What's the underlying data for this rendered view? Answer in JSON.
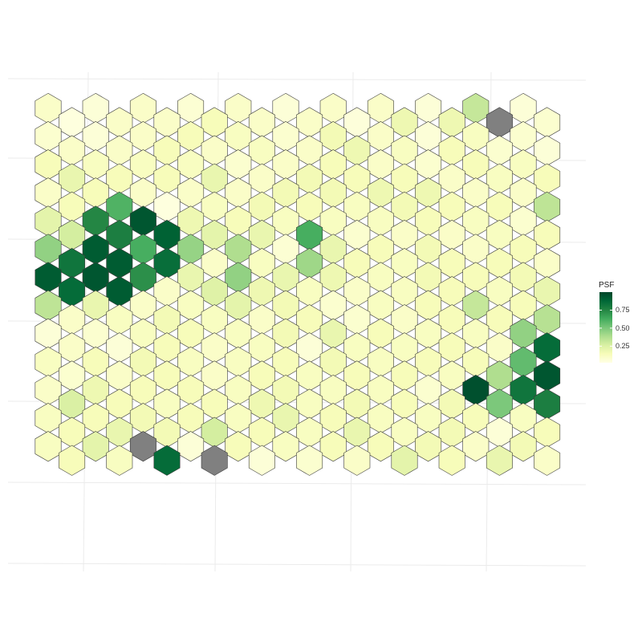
{
  "chart_data": {
    "type": "heatmap",
    "shape": "hexagonal grid",
    "grid": "on",
    "legend_position": "right",
    "legend": {
      "title": "PSF",
      "ticks": [
        0.75,
        0.5,
        0.25
      ],
      "tick_labels": [
        "0.75",
        "0.50",
        "0.25"
      ],
      "range": [
        0.02,
        1.0
      ],
      "colors": [
        "#ffffe5",
        "#f7fcb9",
        "#d9f0a3",
        "#addd8e",
        "#78c679",
        "#41ab5d",
        "#238443",
        "#006837",
        "#004529"
      ]
    },
    "na_color": "#808080",
    "rows": 18,
    "cols": 11,
    "values": [
      [
        0.1,
        0.06,
        0.1,
        0.07,
        0.1,
        0.06,
        0.1,
        0.1,
        0.06,
        0.32,
        0.06
      ],
      [
        0.04,
        0.1,
        0.1,
        0.14,
        0.1,
        0.1,
        0.05,
        0.18,
        0.18,
        null,
        0.08
      ],
      [
        0.08,
        0.06,
        0.1,
        0.14,
        0.12,
        0.08,
        0.16,
        0.1,
        0.06,
        0.12,
        0.08
      ],
      [
        0.1,
        0.1,
        0.14,
        0.1,
        0.12,
        0.1,
        0.18,
        0.12,
        0.14,
        0.08,
        0.06
      ],
      [
        0.14,
        0.12,
        0.12,
        0.12,
        0.08,
        0.1,
        0.14,
        0.1,
        0.08,
        0.14,
        0.12
      ],
      [
        0.2,
        0.14,
        0.14,
        0.2,
        0.1,
        0.16,
        0.14,
        0.14,
        0.1,
        0.12,
        0.14
      ],
      [
        0.1,
        0.14,
        0.1,
        0.1,
        0.1,
        0.16,
        0.16,
        0.18,
        0.18,
        0.1,
        0.1
      ],
      [
        0.14,
        0.6,
        0.04,
        0.12,
        0.16,
        0.14,
        0.12,
        0.16,
        0.14,
        0.14,
        0.34
      ],
      [
        0.22,
        0.75,
        0.94,
        0.18,
        0.14,
        0.12,
        0.12,
        0.12,
        0.14,
        0.12,
        0.08
      ],
      [
        0.28,
        0.78,
        0.9,
        0.22,
        0.2,
        0.62,
        0.08,
        0.1,
        0.1,
        0.12,
        0.14
      ],
      [
        0.45,
        0.92,
        0.62,
        0.44,
        0.38,
        0.07,
        0.2,
        0.14,
        0.16,
        0.1,
        0.14
      ],
      [
        0.82,
        0.92,
        0.85,
        0.1,
        0.12,
        0.42,
        0.14,
        0.12,
        0.14,
        0.14,
        0.1
      ],
      [
        0.92,
        0.94,
        0.72,
        0.2,
        0.45,
        0.2,
        0.18,
        0.12,
        0.16,
        0.14,
        0.16
      ],
      [
        0.86,
        0.92,
        0.1,
        0.24,
        0.18,
        0.12,
        0.1,
        0.12,
        0.14,
        0.12,
        0.2
      ],
      [
        0.34,
        0.2,
        0.1,
        0.12,
        0.22,
        0.16,
        0.08,
        0.12,
        0.14,
        0.32,
        0.14
      ],
      [
        0.1,
        0.12,
        0.16,
        0.12,
        0.1,
        0.14,
        0.08,
        0.1,
        0.14,
        0.14,
        0.36
      ],
      [
        0.06,
        0.08,
        0.12,
        0.14,
        0.12,
        0.16,
        0.2,
        0.14,
        0.12,
        0.12,
        0.45
      ],
      [
        0.1,
        0.06,
        0.14,
        0.1,
        0.12,
        0.06,
        0.12,
        0.12,
        0.14,
        0.1,
        0.86
      ]
    ],
    "values_extra": [
      [
        0.12,
        0.14,
        0.16,
        0.12,
        0.12,
        0.14,
        0.16,
        0.12,
        0.14,
        0.14,
        0.56
      ],
      [
        0.08,
        0.1,
        0.14,
        0.1,
        0.14,
        0.12,
        0.14,
        0.14,
        0.12,
        0.38,
        0.94
      ],
      [
        0.1,
        0.18,
        0.14,
        0.14,
        0.12,
        0.16,
        0.12,
        0.12,
        0.08,
        0.96,
        0.82
      ],
      [
        0.26,
        0.14,
        0.12,
        0.14,
        0.18,
        0.12,
        0.16,
        0.14,
        0.16,
        0.5,
        0.78
      ],
      [
        0.12,
        0.14,
        0.16,
        0.14,
        0.12,
        0.2,
        0.14,
        0.12,
        0.12,
        0.14,
        0.12
      ],
      [
        0.14,
        0.2,
        0.16,
        0.28,
        0.14,
        0.12,
        0.2,
        0.12,
        0.16,
        0.06,
        0.14
      ],
      [
        0.12,
        0.22,
        null,
        0.06,
        0.14,
        0.12,
        0.14,
        0.14,
        0.16,
        0.1,
        0.16
      ],
      [
        0.14,
        0.12,
        0.86,
        null,
        0.06,
        0.08,
        0.1,
        0.22,
        0.14,
        0.2,
        0.1
      ]
    ]
  }
}
